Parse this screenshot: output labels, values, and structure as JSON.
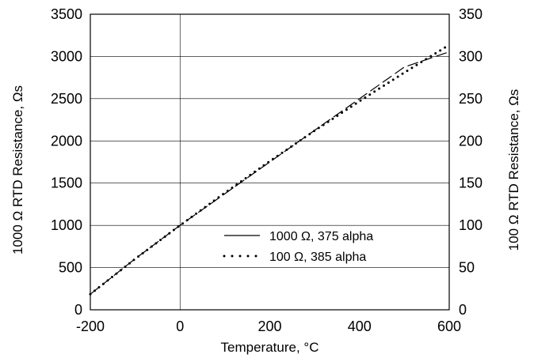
{
  "chart_data": {
    "type": "line",
    "xlabel": "Temperature, °C",
    "ylabel_left": "1000  Ω  RTD Resistance,  Ωs",
    "ylabel_right": "100  Ω  RTD Resistance,  Ωs",
    "xlim": [
      -200,
      600
    ],
    "ylim_left": [
      0,
      3500
    ],
    "ylim_right": [
      0,
      350
    ],
    "x_ticks": [
      "-200",
      "0",
      "200",
      "400",
      "600"
    ],
    "y_ticks_left": [
      "0",
      "500",
      "1000",
      "1500",
      "2000",
      "2500",
      "3000",
      "3500"
    ],
    "y_ticks_right": [
      "0",
      "50",
      "100",
      "150",
      "200",
      "250",
      "300",
      "350"
    ],
    "grid": true,
    "legend_position": "lower-right",
    "series": [
      {
        "name": "1000  Ω,  375 alpha",
        "axis": "left",
        "style": "dashed",
        "x": [
          -200,
          -100,
          0,
          100,
          200,
          300,
          400,
          500,
          600
        ],
        "y": [
          185,
          605,
          1000,
          1375,
          1750,
          2125,
          2500,
          2875,
          3055
        ]
      },
      {
        "name": "100  Ω,  385 alpha",
        "axis": "right",
        "style": "dotted",
        "x": [
          -200,
          -100,
          0,
          100,
          200,
          300,
          400,
          500,
          600
        ],
        "y": [
          18.5,
          60.3,
          100,
          138.5,
          175.9,
          212.1,
          247.1,
          280.9,
          313.7
        ]
      }
    ]
  }
}
